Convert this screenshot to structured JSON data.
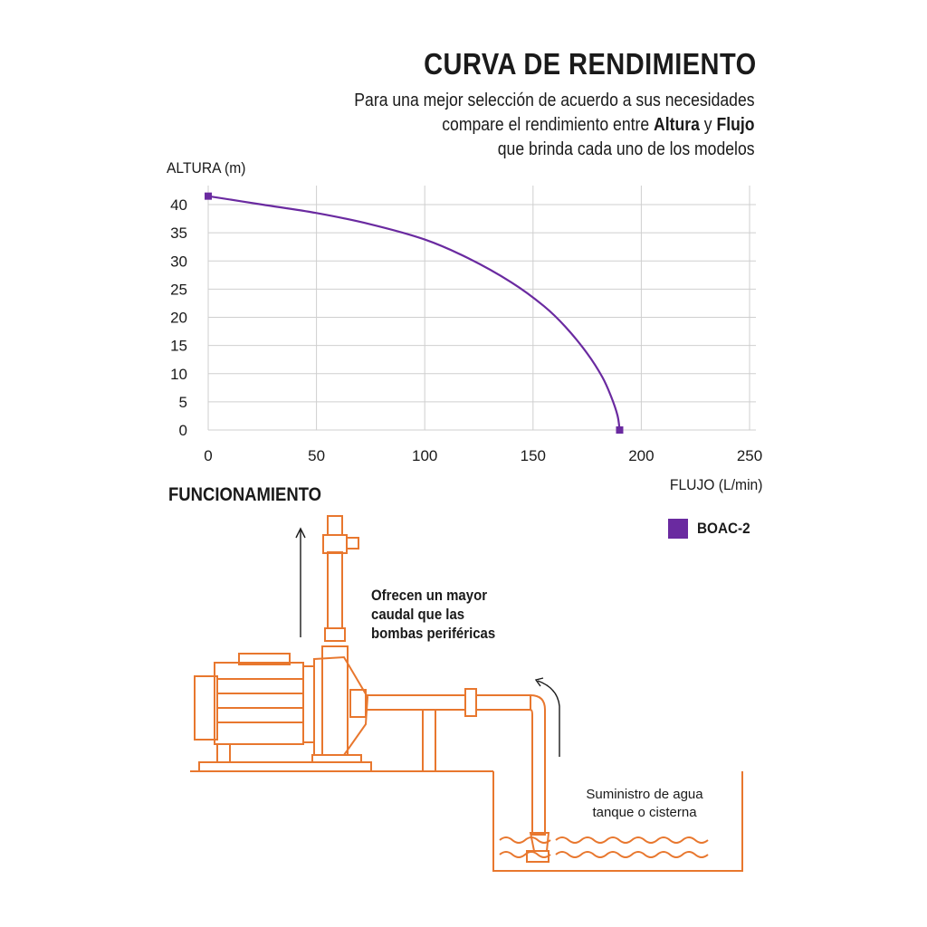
{
  "header": {
    "title": "CURVA DE RENDIMIENTO",
    "subtitle_line1": "Para una mejor selección de acuerdo a sus necesidades",
    "subtitle_line2_pre": "compare el rendimiento entre ",
    "subtitle_line2_bold1": "Altura",
    "subtitle_line2_mid": " y ",
    "subtitle_line2_bold2": "Flujo",
    "subtitle_line3": "que brinda cada uno de los modelos"
  },
  "chart_data": {
    "type": "line",
    "title": "CURVA DE RENDIMIENTO",
    "xlabel": "FLUJO (L/min)",
    "ylabel": "ALTURA  (m)",
    "xlim": [
      0,
      250
    ],
    "ylim": [
      0,
      40
    ],
    "xticks": [
      "0",
      "50",
      "100",
      "150",
      "200",
      "250"
    ],
    "yticks": [
      "0",
      "5",
      "10",
      "15",
      "20",
      "25",
      "30",
      "35",
      "40"
    ],
    "grid": true,
    "legend_position": "bottom-right",
    "series": [
      {
        "name": "BOAC-2",
        "color": "#6a2aa0",
        "x": [
          0,
          25,
          50,
          75,
          100,
          120,
          140,
          155,
          165,
          175,
          182,
          186,
          189,
          190
        ],
        "y": [
          41.5,
          40.0,
          38.5,
          36.5,
          33.8,
          30.5,
          26.2,
          22.0,
          18.3,
          13.6,
          9.4,
          6.0,
          2.6,
          0
        ],
        "endpoint_markers": true
      }
    ]
  },
  "diagram": {
    "section_title": "FUNCIONAMIENTO",
    "caption_line1": "Ofrecen un mayor",
    "caption_line2": "caudal que las",
    "caption_line3": "bombas periféricas",
    "supply_line1": "Suministro de agua",
    "supply_line2": "tanque o cisterna",
    "line_color": "#e8772e",
    "arrow_color": "#1a1a1a"
  }
}
